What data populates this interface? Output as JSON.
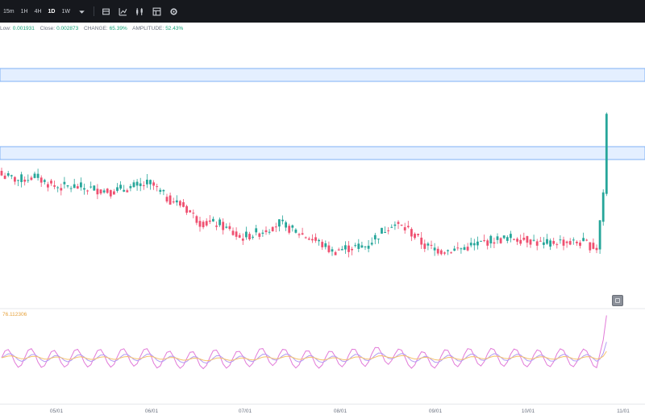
{
  "toolbar": {
    "timeframes": [
      "15m",
      "1H",
      "4H",
      "1D",
      "1W"
    ],
    "active_timeframe": "1D",
    "more_icon": "caret-down-icon",
    "tool_icons": [
      "candles-icon",
      "indicators-icon",
      "compare-icon",
      "layout-icon",
      "settings-icon"
    ]
  },
  "ohlc": {
    "low_label": "Low:",
    "low_value": "0.001931",
    "close_label": "Close:",
    "close_value": "0.002873",
    "change_label": "CHANGE:",
    "change_value": "65.39%",
    "amplitude_label": "AMPLITUDE:",
    "amplitude_value": "52.43%"
  },
  "oscillator": {
    "value_label": "76.112306"
  },
  "colors": {
    "up": "#26a69a",
    "down": "#ef5070",
    "zone_fill": "#dbe9ff",
    "zone_border": "#7fb0f5",
    "osc_pink": "#e27ad8",
    "osc_purple": "#b39cf2",
    "osc_orange": "#f5c26b"
  },
  "x_axis": {
    "ticks": [
      "05/01",
      "06/01",
      "07/01",
      "08/01",
      "09/01",
      "10/01",
      "11/01"
    ]
  },
  "chart_data": [
    {
      "type": "candlestick",
      "zones": [
        "resistance-upper",
        "resistance-lower"
      ],
      "anchors": [
        [
          0,
          0.0023
        ],
        [
          5,
          0.00226
        ],
        [
          10,
          0.00229
        ],
        [
          16,
          0.0022
        ],
        [
          22,
          0.0022
        ],
        [
          28,
          0.00218
        ],
        [
          33,
          0.00216
        ],
        [
          38,
          0.00219
        ],
        [
          45,
          0.00223
        ],
        [
          50,
          0.0021
        ],
        [
          55,
          0.00203
        ],
        [
          60,
          0.00189
        ],
        [
          66,
          0.00187
        ],
        [
          72,
          0.00175
        ],
        [
          78,
          0.0018
        ],
        [
          84,
          0.00188
        ],
        [
          90,
          0.00179
        ],
        [
          96,
          0.00171
        ],
        [
          100,
          0.00163
        ],
        [
          104,
          0.00166
        ],
        [
          110,
          0.00168
        ],
        [
          114,
          0.00178
        ],
        [
          118,
          0.00188
        ],
        [
          123,
          0.00182
        ],
        [
          128,
          0.00168
        ],
        [
          133,
          0.00164
        ],
        [
          138,
          0.00165
        ],
        [
          143,
          0.00169
        ],
        [
          148,
          0.00173
        ],
        [
          154,
          0.00175
        ],
        [
          159,
          0.00174
        ],
        [
          164,
          0.00169
        ],
        [
          168,
          0.00172
        ],
        [
          172,
          0.00171
        ],
        [
          176,
          0.00171
        ],
        [
          180,
          0.00166
        ],
        [
          182,
          0.00215
        ],
        [
          183,
          0.00284
        ]
      ]
    },
    {
      "type": "line",
      "series": [
        "fast",
        "mid",
        "slow"
      ]
    }
  ]
}
